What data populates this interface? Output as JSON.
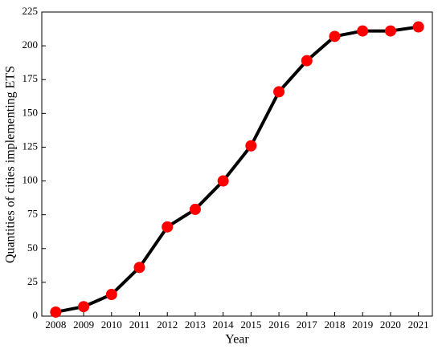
{
  "chart_data": {
    "type": "line",
    "xlabel": "Year",
    "ylabel": "Quantities of cities implementing ETS",
    "x": [
      2008,
      2009,
      2010,
      2011,
      2012,
      2013,
      2014,
      2015,
      2016,
      2017,
      2018,
      2019,
      2020,
      2021
    ],
    "series": [
      {
        "name": null,
        "color": "#000000",
        "marker_color": "#ff0000",
        "values": [
          3,
          7,
          16,
          36,
          66,
          79,
          100,
          126,
          166,
          189,
          207,
          211,
          211,
          214
        ]
      }
    ],
    "xlim": [
      2007.5,
      2021.5
    ],
    "xticks": [
      2008,
      2009,
      2010,
      2011,
      2012,
      2013,
      2014,
      2015,
      2016,
      2017,
      2018,
      2019,
      2020,
      2021
    ],
    "ylim": [
      0,
      225
    ],
    "yticks": [
      0,
      25,
      50,
      75,
      100,
      125,
      150,
      175,
      200,
      225
    ],
    "grid": false
  }
}
